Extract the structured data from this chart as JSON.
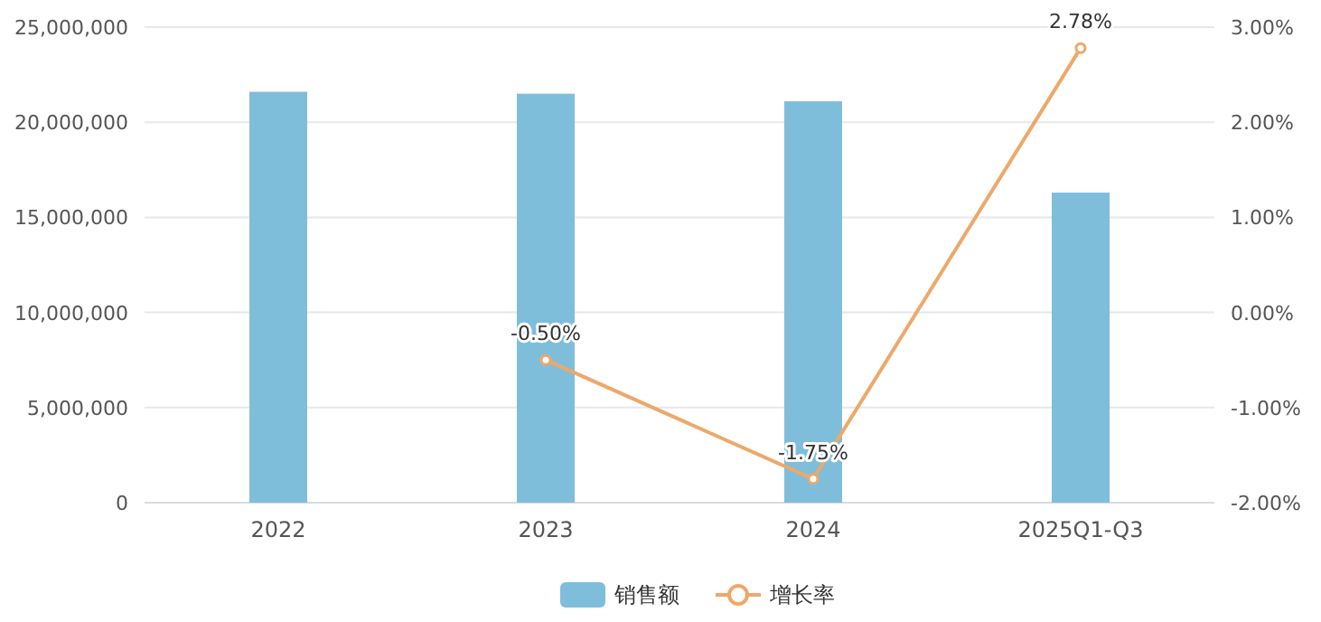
{
  "chart_data": {
    "type": "bar",
    "categories": [
      "2022",
      "2023",
      "2024",
      "2025Q1-Q3"
    ],
    "series": [
      {
        "name": "销售额",
        "color": "#7fbedb",
        "values": [
          21600000,
          21500000,
          21100000,
          16300000
        ]
      },
      {
        "name": "增长率",
        "type": "line",
        "axis": "y2",
        "color": "#eda86a",
        "marker": "circle",
        "values": [
          null,
          -0.5,
          -1.75,
          2.78
        ],
        "value_labels": [
          null,
          "-0.50%",
          "-1.75%",
          "2.78%"
        ]
      }
    ],
    "ylim": [
      0,
      25000000
    ],
    "yticks": [
      {
        "value": 0,
        "label": "0"
      },
      {
        "value": 5000000,
        "label": "5,000,000"
      },
      {
        "value": 10000000,
        "label": "10,000,000"
      },
      {
        "value": 15000000,
        "label": "15,000,000"
      },
      {
        "value": 20000000,
        "label": "20,000,000"
      },
      {
        "value": 25000000,
        "label": "25,000,000"
      }
    ],
    "y2lim": [
      -2,
      3
    ],
    "y2ticks": [
      {
        "value": -2,
        "label": "-2.00%"
      },
      {
        "value": -1,
        "label": "-1.00%"
      },
      {
        "value": 0,
        "label": "0.00%"
      },
      {
        "value": 1,
        "label": "1.00%"
      },
      {
        "value": 2,
        "label": "2.00%"
      },
      {
        "value": 3,
        "label": "3.00%"
      }
    ],
    "grid": "y",
    "legend": "bottom"
  }
}
